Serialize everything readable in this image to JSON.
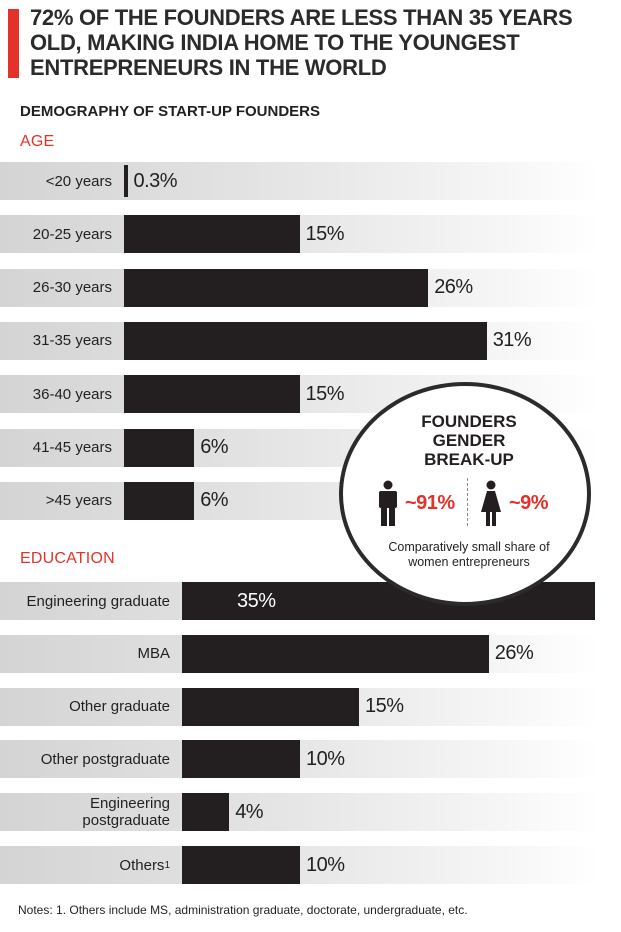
{
  "headline": "72% OF THE FOUNDERS ARE LESS THAN 35 YEARS OLD, MAKING INDIA HOME TO THE YOUNGEST ENTREPRENEURS IN THE WORLD",
  "subtitle": "DEMOGRAPHY OF START-UP FOUNDERS",
  "colors": {
    "accent": "#e4322b",
    "bar": "#231f20"
  },
  "chart_data": [
    {
      "type": "bar",
      "title": "AGE",
      "orientation": "horizontal",
      "categories": [
        "<20 years",
        "20-25 years",
        "26-30 years",
        "31-35 years",
        "36-40 years",
        "41-45 years",
        ">45 years"
      ],
      "values": [
        0.3,
        15,
        26,
        31,
        15,
        6,
        6
      ],
      "value_labels": [
        "0.3%",
        "15%",
        "26%",
        "31%",
        "15%",
        "6%",
        "6%"
      ],
      "unit": "%"
    },
    {
      "type": "bar",
      "title": "EDUCATION",
      "orientation": "horizontal",
      "categories": [
        "Engineering graduate",
        "MBA",
        "Other graduate",
        "Other postgraduate",
        "Engineering postgraduate",
        "Others"
      ],
      "category_superscripts": [
        "",
        "",
        "",
        "",
        "",
        "1"
      ],
      "values": [
        35,
        26,
        15,
        10,
        4,
        10
      ],
      "value_labels": [
        "35%",
        "26%",
        "15%",
        "10%",
        "4%",
        "10%"
      ],
      "unit": "%"
    }
  ],
  "gender": {
    "title": "FOUNDERS GENDER BREAK-UP",
    "male_label": "~91%",
    "female_label": "~9%",
    "male_value": 91,
    "female_value": 9,
    "note": "Comparatively small share of women entrepreneurs",
    "male_icon": "male-person-icon",
    "female_icon": "female-person-icon"
  },
  "footnote": "Notes: 1. Others include MS, administration graduate, doctorate, undergraduate, etc."
}
